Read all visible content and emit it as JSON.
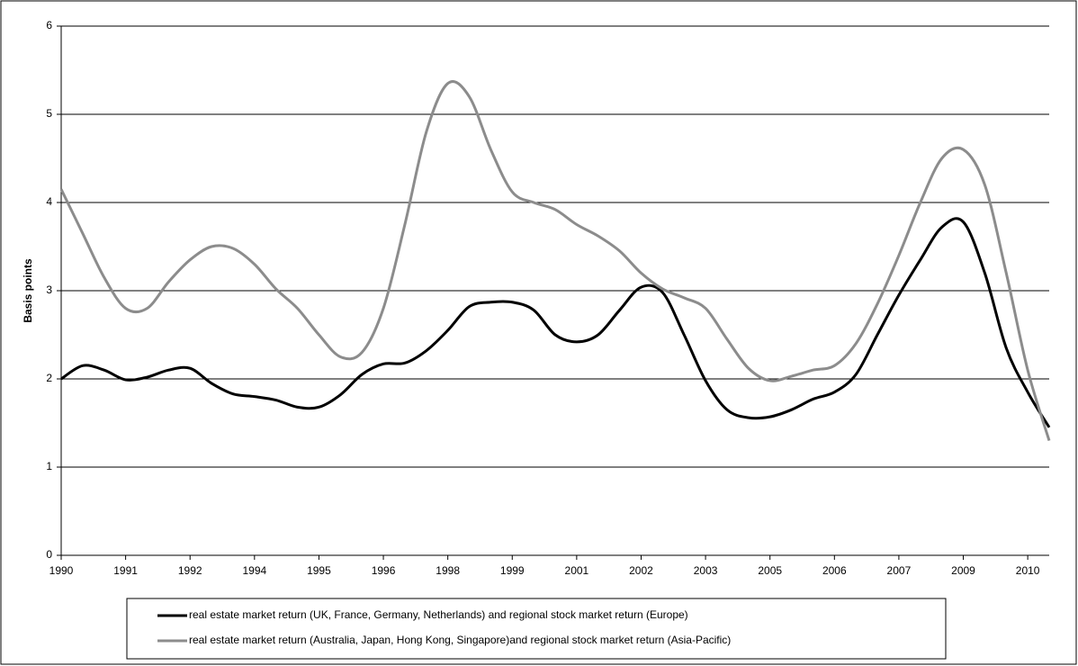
{
  "chart_data": {
    "type": "line",
    "ylabel": "Basis points",
    "categories": [
      "1990",
      null,
      null,
      "1991",
      null,
      null,
      "1992",
      null,
      null,
      "1994",
      null,
      null,
      "1995",
      null,
      null,
      "1996",
      null,
      null,
      "1998",
      null,
      null,
      "1999",
      null,
      null,
      "2001",
      null,
      null,
      "2002",
      null,
      null,
      "2003",
      null,
      null,
      "2005",
      null,
      null,
      "2006",
      null,
      null,
      "2007",
      null,
      null,
      "2009",
      null,
      null,
      "2010",
      null
    ],
    "series": [
      {
        "name": "real estate market return (UK, France, Germany, Netherlands) and regional stock market return (Europe)",
        "color": "#000000",
        "values": [
          2.0,
          2.15,
          2.1,
          1.99,
          2.02,
          2.1,
          2.12,
          1.95,
          1.83,
          1.8,
          1.76,
          1.68,
          1.68,
          1.82,
          2.05,
          2.17,
          2.18,
          2.32,
          2.55,
          2.82,
          2.87,
          2.87,
          2.78,
          2.5,
          2.42,
          2.5,
          2.78,
          3.04,
          2.98,
          2.5,
          1.98,
          1.65,
          1.56,
          1.57,
          1.65,
          1.77,
          1.85,
          2.05,
          2.5,
          2.95,
          3.35,
          3.72,
          3.78,
          3.2,
          2.35,
          1.85,
          1.45
        ]
      },
      {
        "name": "real estate market return (Australia, Japan, Hong Kong, Singapore)and regional stock market return (Asia-Pacific)",
        "color": "#8c8c8c",
        "values": [
          4.15,
          3.65,
          3.15,
          2.8,
          2.8,
          3.1,
          3.35,
          3.5,
          3.48,
          3.3,
          3.02,
          2.8,
          2.5,
          2.25,
          2.3,
          2.8,
          3.75,
          4.8,
          5.35,
          5.2,
          4.6,
          4.12,
          4.0,
          3.92,
          3.75,
          3.62,
          3.45,
          3.2,
          3.02,
          2.92,
          2.8,
          2.45,
          2.12,
          1.98,
          2.03,
          2.1,
          2.15,
          2.4,
          2.85,
          3.4,
          4.0,
          4.5,
          4.6,
          4.2,
          3.2,
          2.1,
          1.3
        ]
      }
    ],
    "ylim": [
      0,
      6
    ],
    "yticks": [
      0,
      1,
      2,
      3,
      4,
      5,
      6
    ],
    "grid": true,
    "legend": "bottom"
  }
}
